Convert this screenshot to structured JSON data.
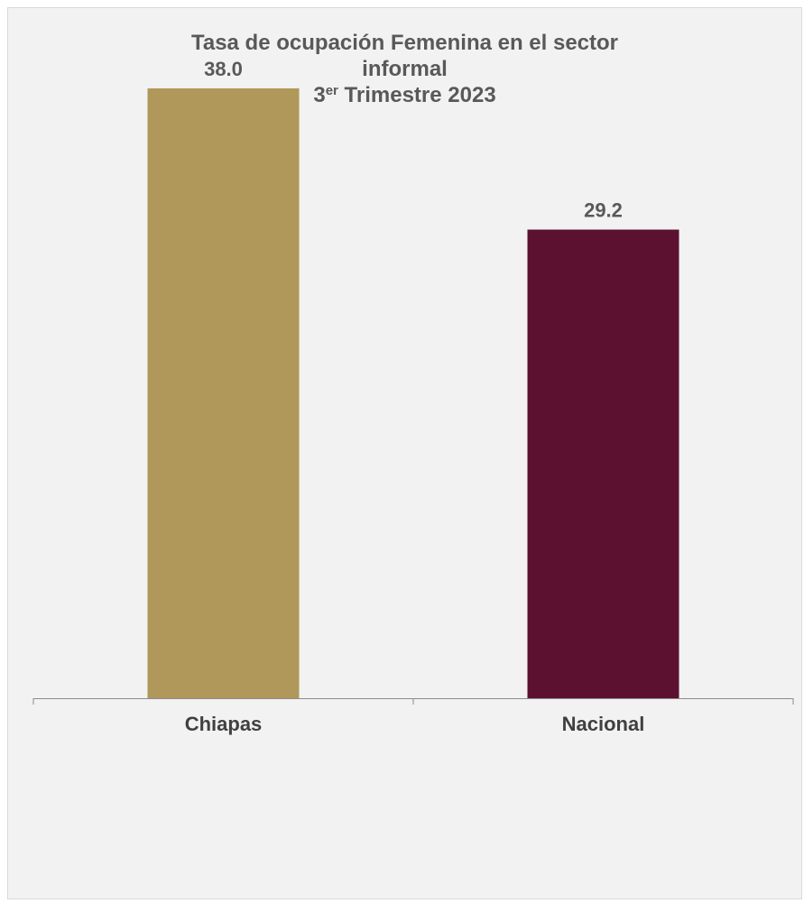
{
  "chart_data": {
    "type": "bar",
    "title": {
      "line1": "Tasa de ocupación Femenina en el sector",
      "line2": "informal",
      "line3_number": "3",
      "line3_superscript": "er",
      "line3_rest": " Trimestre 2023"
    },
    "categories": [
      "Chiapas",
      "Nacional"
    ],
    "values": [
      38.0,
      29.2
    ],
    "value_labels": [
      "38.0",
      "29.2"
    ],
    "colors": [
      "#b0985a",
      "#5c1130"
    ],
    "ylim": [
      0,
      43
    ],
    "grid": false,
    "legend": "none",
    "xlabel": "",
    "ylabel": ""
  }
}
